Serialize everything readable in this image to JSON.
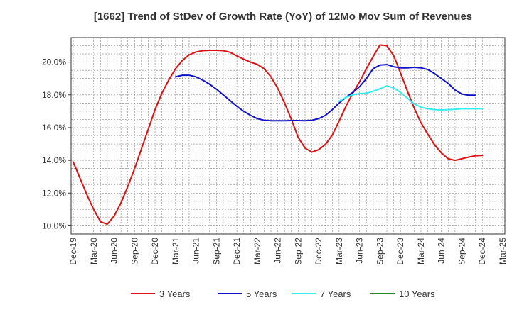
{
  "chart_data": {
    "type": "line",
    "title": "[1662]  Trend of StDev of Growth Rate (YoY) of 12Mo Mov Sum of Revenues",
    "xlabel": "",
    "ylabel": "",
    "ylim": [
      9.5,
      21.5
    ],
    "yticks": [
      10,
      12,
      14,
      16,
      18,
      20
    ],
    "ytick_labels": [
      "10.0%",
      "12.0%",
      "14.0%",
      "16.0%",
      "18.0%",
      "20.0%"
    ],
    "x_start": "Dec-19",
    "x_tick_step_months": 3,
    "x_tick_labels": [
      "Dec-19",
      "Mar-20",
      "Jun-20",
      "Sep-20",
      "Dec-20",
      "Mar-21",
      "Jun-21",
      "Sep-21",
      "Dec-21",
      "Mar-22",
      "Jun-22",
      "Sep-22",
      "Dec-22",
      "Mar-23",
      "Jun-23",
      "Sep-23",
      "Dec-23",
      "Mar-24",
      "Jun-24",
      "Sep-24",
      "Dec-24",
      "Mar-25"
    ],
    "grid": true,
    "legend_position": "bottom",
    "series": [
      {
        "name": "3 Years",
        "color": "#dd1111",
        "start_month": 0,
        "values": [
          13.9,
          12.9,
          11.9,
          11.0,
          10.25,
          10.1,
          10.6,
          11.4,
          12.4,
          13.5,
          14.7,
          15.9,
          17.1,
          18.1,
          18.9,
          19.6,
          20.1,
          20.45,
          20.62,
          20.7,
          20.72,
          20.72,
          20.7,
          20.6,
          20.38,
          20.18,
          20.0,
          19.86,
          19.6,
          19.1,
          18.4,
          17.5,
          16.5,
          15.4,
          14.75,
          14.5,
          14.65,
          14.98,
          15.55,
          16.4,
          17.3,
          18.1,
          18.8,
          19.6,
          20.35,
          21.05,
          21.0,
          20.4,
          19.35,
          18.25,
          17.2,
          16.3,
          15.6,
          14.95,
          14.45,
          14.1,
          14.0,
          14.1,
          14.2,
          14.28,
          14.3
        ]
      },
      {
        "name": "5 Years",
        "color": "#1111cc",
        "start_month": 15,
        "values": [
          19.1,
          19.2,
          19.2,
          19.1,
          18.9,
          18.65,
          18.35,
          18.0,
          17.65,
          17.3,
          17.0,
          16.75,
          16.55,
          16.45,
          16.42,
          16.42,
          16.42,
          16.43,
          16.43,
          16.42,
          16.45,
          16.55,
          16.75,
          17.1,
          17.5,
          17.85,
          18.15,
          18.5,
          19.0,
          19.6,
          19.82,
          19.85,
          19.72,
          19.65,
          19.65,
          19.68,
          19.65,
          19.55,
          19.3,
          19.0,
          18.7,
          18.3,
          18.05,
          17.98,
          17.98
        ]
      },
      {
        "name": "7 Years",
        "color": "#33eeee",
        "start_month": 39,
        "values": [
          17.6,
          17.85,
          18.0,
          18.08,
          18.1,
          18.22,
          18.38,
          18.55,
          18.42,
          18.15,
          17.8,
          17.45,
          17.25,
          17.15,
          17.1,
          17.08,
          17.1,
          17.12,
          17.15,
          17.15,
          17.15,
          17.15
        ]
      },
      {
        "name": "10 Years",
        "color": "#228822",
        "start_month": 0,
        "values": []
      }
    ]
  }
}
